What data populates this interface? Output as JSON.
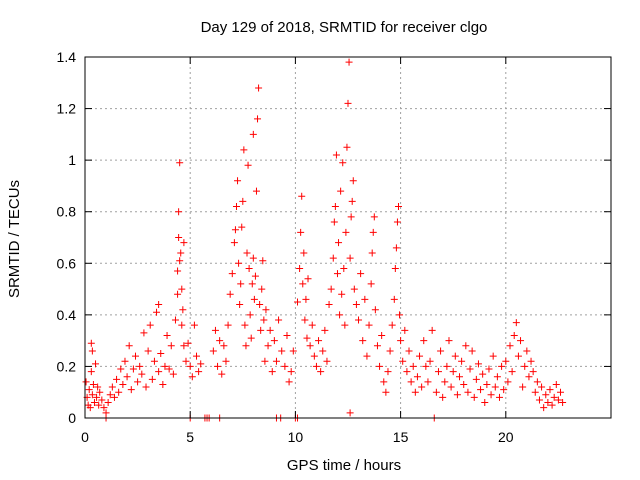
{
  "chart_data": {
    "type": "scatter",
    "title": "Day 129 of 2018, SRMTID for receiver clgo",
    "xlabel": "GPS time / hours",
    "ylabel": "SRMTID / TECUs",
    "xlim": [
      0,
      25
    ],
    "ylim": [
      0,
      1.4
    ],
    "xticks": [
      0,
      5,
      10,
      15,
      20
    ],
    "yticks": [
      0,
      0.2,
      0.4,
      0.6,
      0.8,
      1,
      1.2,
      1.4
    ],
    "ytick_labels": [
      "0",
      "0.2",
      "0.4",
      "0.6",
      "0.8",
      "1",
      "1.2",
      "1.4"
    ],
    "grid": true,
    "marker": "+",
    "color": "#ff0000",
    "series": [
      {
        "name": "SRMTID",
        "points": [
          [
            0.05,
            0.14
          ],
          [
            0.1,
            0.08
          ],
          [
            0.15,
            0.05
          ],
          [
            0.2,
            0.11
          ],
          [
            0.25,
            0.04
          ],
          [
            0.3,
            0.18
          ],
          [
            0.35,
            0.09
          ],
          [
            0.4,
            0.13
          ],
          [
            0.45,
            0.06
          ],
          [
            0.5,
            0.21
          ],
          [
            0.55,
            0.08
          ],
          [
            0.6,
            0.12
          ],
          [
            0.65,
            0.05
          ],
          [
            0.7,
            0.1
          ],
          [
            0.3,
            0.29
          ],
          [
            0.35,
            0.26
          ],
          [
            0.8,
            0.07
          ],
          [
            0.9,
            0.04
          ],
          [
            1.0,
            0.0
          ],
          [
            1.0,
            0.02
          ],
          [
            1.1,
            0.06
          ],
          [
            1.2,
            0.09
          ],
          [
            1.3,
            0.12
          ],
          [
            1.4,
            0.08
          ],
          [
            1.5,
            0.15
          ],
          [
            1.6,
            0.1
          ],
          [
            1.7,
            0.19
          ],
          [
            1.8,
            0.13
          ],
          [
            1.9,
            0.22
          ],
          [
            2.0,
            0.16
          ],
          [
            2.1,
            0.28
          ],
          [
            2.2,
            0.11
          ],
          [
            2.3,
            0.19
          ],
          [
            2.4,
            0.24
          ],
          [
            2.5,
            0.14
          ],
          [
            2.6,
            0.2
          ],
          [
            2.7,
            0.17
          ],
          [
            2.8,
            0.33
          ],
          [
            2.9,
            0.12
          ],
          [
            3.0,
            0.26
          ],
          [
            3.1,
            0.36
          ],
          [
            3.2,
            0.15
          ],
          [
            3.3,
            0.22
          ],
          [
            3.4,
            0.41
          ],
          [
            3.5,
            0.18
          ],
          [
            3.5,
            0.44
          ],
          [
            3.6,
            0.25
          ],
          [
            3.7,
            0.13
          ],
          [
            3.8,
            0.2
          ],
          [
            3.9,
            0.32
          ],
          [
            4.0,
            0.19
          ],
          [
            4.1,
            0.28
          ],
          [
            4.2,
            0.17
          ],
          [
            4.3,
            0.38
          ],
          [
            4.4,
            0.48
          ],
          [
            4.4,
            0.57
          ],
          [
            4.45,
            0.7
          ],
          [
            4.45,
            0.8
          ],
          [
            4.5,
            0.99
          ],
          [
            4.5,
            0.61
          ],
          [
            4.55,
            0.64
          ],
          [
            4.6,
            0.5
          ],
          [
            4.6,
            0.36
          ],
          [
            4.65,
            0.42
          ],
          [
            4.7,
            0.68
          ],
          [
            4.7,
            0.28
          ],
          [
            4.8,
            0.22
          ],
          [
            4.9,
            0.29
          ],
          [
            5.0,
            0.2
          ],
          [
            5.0,
            0.0
          ],
          [
            5.1,
            0.16
          ],
          [
            5.2,
            0.36
          ],
          [
            5.3,
            0.24
          ],
          [
            5.4,
            0.18
          ],
          [
            5.5,
            0.21
          ],
          [
            5.7,
            0.0
          ],
          [
            5.8,
            0.0
          ],
          [
            5.9,
            0.0
          ],
          [
            6.1,
            0.26
          ],
          [
            6.2,
            0.34
          ],
          [
            6.3,
            0.2
          ],
          [
            6.4,
            0.0
          ],
          [
            6.4,
            0.3
          ],
          [
            6.5,
            0.17
          ],
          [
            6.6,
            0.28
          ],
          [
            6.7,
            0.22
          ],
          [
            6.8,
            0.36
          ],
          [
            6.9,
            0.48
          ],
          [
            7.0,
            0.56
          ],
          [
            7.1,
            0.68
          ],
          [
            7.15,
            0.73
          ],
          [
            7.2,
            0.82
          ],
          [
            7.25,
            0.92
          ],
          [
            7.3,
            0.6
          ],
          [
            7.35,
            0.44
          ],
          [
            7.4,
            0.52
          ],
          [
            7.45,
            0.74
          ],
          [
            7.5,
            0.84
          ],
          [
            7.55,
            1.04
          ],
          [
            7.6,
            0.36
          ],
          [
            7.65,
            0.28
          ],
          [
            7.7,
            0.64
          ],
          [
            7.75,
            0.98
          ],
          [
            7.8,
            0.58
          ],
          [
            7.85,
            0.4
          ],
          [
            7.9,
            0.31
          ],
          [
            7.95,
            0.52
          ],
          [
            8.0,
            0.62
          ],
          [
            8.0,
            1.1
          ],
          [
            8.05,
            0.46
          ],
          [
            8.1,
            0.55
          ],
          [
            8.15,
            0.88
          ],
          [
            8.2,
            1.16
          ],
          [
            8.25,
            1.28
          ],
          [
            8.3,
            0.44
          ],
          [
            8.35,
            0.34
          ],
          [
            8.4,
            0.5
          ],
          [
            8.45,
            0.61
          ],
          [
            8.5,
            0.38
          ],
          [
            8.55,
            0.22
          ],
          [
            8.6,
            0.42
          ],
          [
            8.7,
            0.28
          ],
          [
            8.8,
            0.34
          ],
          [
            8.9,
            0.18
          ],
          [
            9.0,
            0.3
          ],
          [
            9.1,
            0.22
          ],
          [
            9.1,
            0.0
          ],
          [
            9.2,
            0.38
          ],
          [
            9.3,
            0.0
          ],
          [
            9.35,
            0.26
          ],
          [
            9.5,
            0.2
          ],
          [
            9.6,
            0.32
          ],
          [
            9.7,
            0.14
          ],
          [
            9.8,
            0.18
          ],
          [
            9.9,
            0.26
          ],
          [
            10.0,
            0.0
          ],
          [
            10.1,
            0.0
          ],
          [
            10.1,
            0.45
          ],
          [
            10.2,
            0.58
          ],
          [
            10.25,
            0.72
          ],
          [
            10.3,
            0.86
          ],
          [
            10.35,
            0.52
          ],
          [
            10.4,
            0.64
          ],
          [
            10.45,
            0.38
          ],
          [
            10.5,
            0.46
          ],
          [
            10.55,
            0.31
          ],
          [
            10.6,
            0.54
          ],
          [
            10.7,
            0.28
          ],
          [
            10.8,
            0.36
          ],
          [
            10.9,
            0.24
          ],
          [
            11.0,
            0.2
          ],
          [
            11.1,
            0.3
          ],
          [
            11.2,
            0.18
          ],
          [
            11.3,
            0.26
          ],
          [
            11.4,
            0.34
          ],
          [
            11.5,
            0.22
          ],
          [
            11.6,
            0.44
          ],
          [
            11.7,
            0.5
          ],
          [
            11.8,
            0.62
          ],
          [
            11.85,
            0.76
          ],
          [
            11.9,
            0.82
          ],
          [
            11.95,
            1.02
          ],
          [
            12.0,
            0.56
          ],
          [
            12.05,
            0.68
          ],
          [
            12.1,
            0.4
          ],
          [
            12.15,
            0.88
          ],
          [
            12.2,
            0.48
          ],
          [
            12.25,
            0.99
          ],
          [
            12.3,
            0.58
          ],
          [
            12.35,
            0.36
          ],
          [
            12.4,
            0.72
          ],
          [
            12.45,
            1.05
          ],
          [
            12.5,
            1.22
          ],
          [
            12.55,
            1.38
          ],
          [
            12.6,
            0.62
          ],
          [
            12.65,
            0.78
          ],
          [
            12.7,
            0.84
          ],
          [
            12.75,
            0.92
          ],
          [
            12.8,
            0.5
          ],
          [
            12.6,
            0.02
          ],
          [
            12.9,
            0.44
          ],
          [
            13.0,
            0.38
          ],
          [
            13.1,
            0.56
          ],
          [
            13.2,
            0.3
          ],
          [
            13.3,
            0.46
          ],
          [
            13.4,
            0.24
          ],
          [
            13.5,
            0.36
          ],
          [
            13.6,
            0.52
          ],
          [
            13.65,
            0.64
          ],
          [
            13.7,
            0.72
          ],
          [
            13.75,
            0.78
          ],
          [
            13.8,
            0.42
          ],
          [
            13.9,
            0.28
          ],
          [
            14.0,
            0.2
          ],
          [
            14.1,
            0.32
          ],
          [
            14.2,
            0.14
          ],
          [
            14.3,
            0.1
          ],
          [
            14.4,
            0.18
          ],
          [
            14.5,
            0.26
          ],
          [
            14.6,
            0.36
          ],
          [
            14.7,
            0.46
          ],
          [
            14.75,
            0.58
          ],
          [
            14.8,
            0.66
          ],
          [
            14.85,
            0.76
          ],
          [
            14.9,
            0.82
          ],
          [
            14.95,
            0.4
          ],
          [
            15.0,
            0.3
          ],
          [
            15.1,
            0.22
          ],
          [
            15.2,
            0.34
          ],
          [
            15.3,
            0.18
          ],
          [
            15.4,
            0.26
          ],
          [
            15.5,
            0.14
          ],
          [
            15.6,
            0.2
          ],
          [
            15.7,
            0.1
          ],
          [
            15.8,
            0.16
          ],
          [
            15.9,
            0.24
          ],
          [
            16.0,
            0.12
          ],
          [
            16.1,
            0.3
          ],
          [
            16.2,
            0.2
          ],
          [
            16.3,
            0.14
          ],
          [
            16.4,
            0.22
          ],
          [
            16.5,
            0.34
          ],
          [
            16.6,
            0.0
          ],
          [
            16.7,
            0.1
          ],
          [
            16.8,
            0.18
          ],
          [
            16.9,
            0.26
          ],
          [
            17.0,
            0.08
          ],
          [
            17.1,
            0.14
          ],
          [
            17.2,
            0.2
          ],
          [
            17.3,
            0.3
          ],
          [
            17.4,
            0.12
          ],
          [
            17.5,
            0.18
          ],
          [
            17.6,
            0.24
          ],
          [
            17.7,
            0.09
          ],
          [
            17.8,
            0.16
          ],
          [
            17.9,
            0.22
          ],
          [
            18.0,
            0.13
          ],
          [
            18.1,
            0.28
          ],
          [
            18.2,
            0.1
          ],
          [
            18.3,
            0.19
          ],
          [
            18.4,
            0.26
          ],
          [
            18.5,
            0.08
          ],
          [
            18.6,
            0.15
          ],
          [
            18.7,
            0.21
          ],
          [
            18.8,
            0.11
          ],
          [
            18.9,
            0.17
          ],
          [
            19.0,
            0.06
          ],
          [
            19.1,
            0.13
          ],
          [
            19.2,
            0.19
          ],
          [
            19.3,
            0.09
          ],
          [
            19.4,
            0.24
          ],
          [
            19.5,
            0.12
          ],
          [
            19.6,
            0.16
          ],
          [
            19.7,
            0.08
          ],
          [
            19.8,
            0.2
          ],
          [
            19.9,
            0.11
          ],
          [
            20.0,
            0.22
          ],
          [
            20.1,
            0.14
          ],
          [
            20.2,
            0.28
          ],
          [
            20.3,
            0.18
          ],
          [
            20.4,
            0.32
          ],
          [
            20.5,
            0.37
          ],
          [
            20.6,
            0.24
          ],
          [
            20.7,
            0.3
          ],
          [
            20.8,
            0.12
          ],
          [
            20.9,
            0.2
          ],
          [
            21.0,
            0.26
          ],
          [
            21.1,
            0.16
          ],
          [
            21.2,
            0.22
          ],
          [
            21.3,
            0.18
          ],
          [
            21.4,
            0.1
          ],
          [
            21.5,
            0.14
          ],
          [
            21.6,
            0.07
          ],
          [
            21.7,
            0.12
          ],
          [
            21.8,
            0.04
          ],
          [
            21.9,
            0.09
          ],
          [
            22.0,
            0.06
          ],
          [
            22.1,
            0.11
          ],
          [
            22.2,
            0.05
          ],
          [
            22.3,
            0.08
          ],
          [
            22.4,
            0.13
          ],
          [
            22.5,
            0.07
          ],
          [
            22.6,
            0.1
          ],
          [
            22.7,
            0.06
          ]
        ]
      }
    ]
  }
}
